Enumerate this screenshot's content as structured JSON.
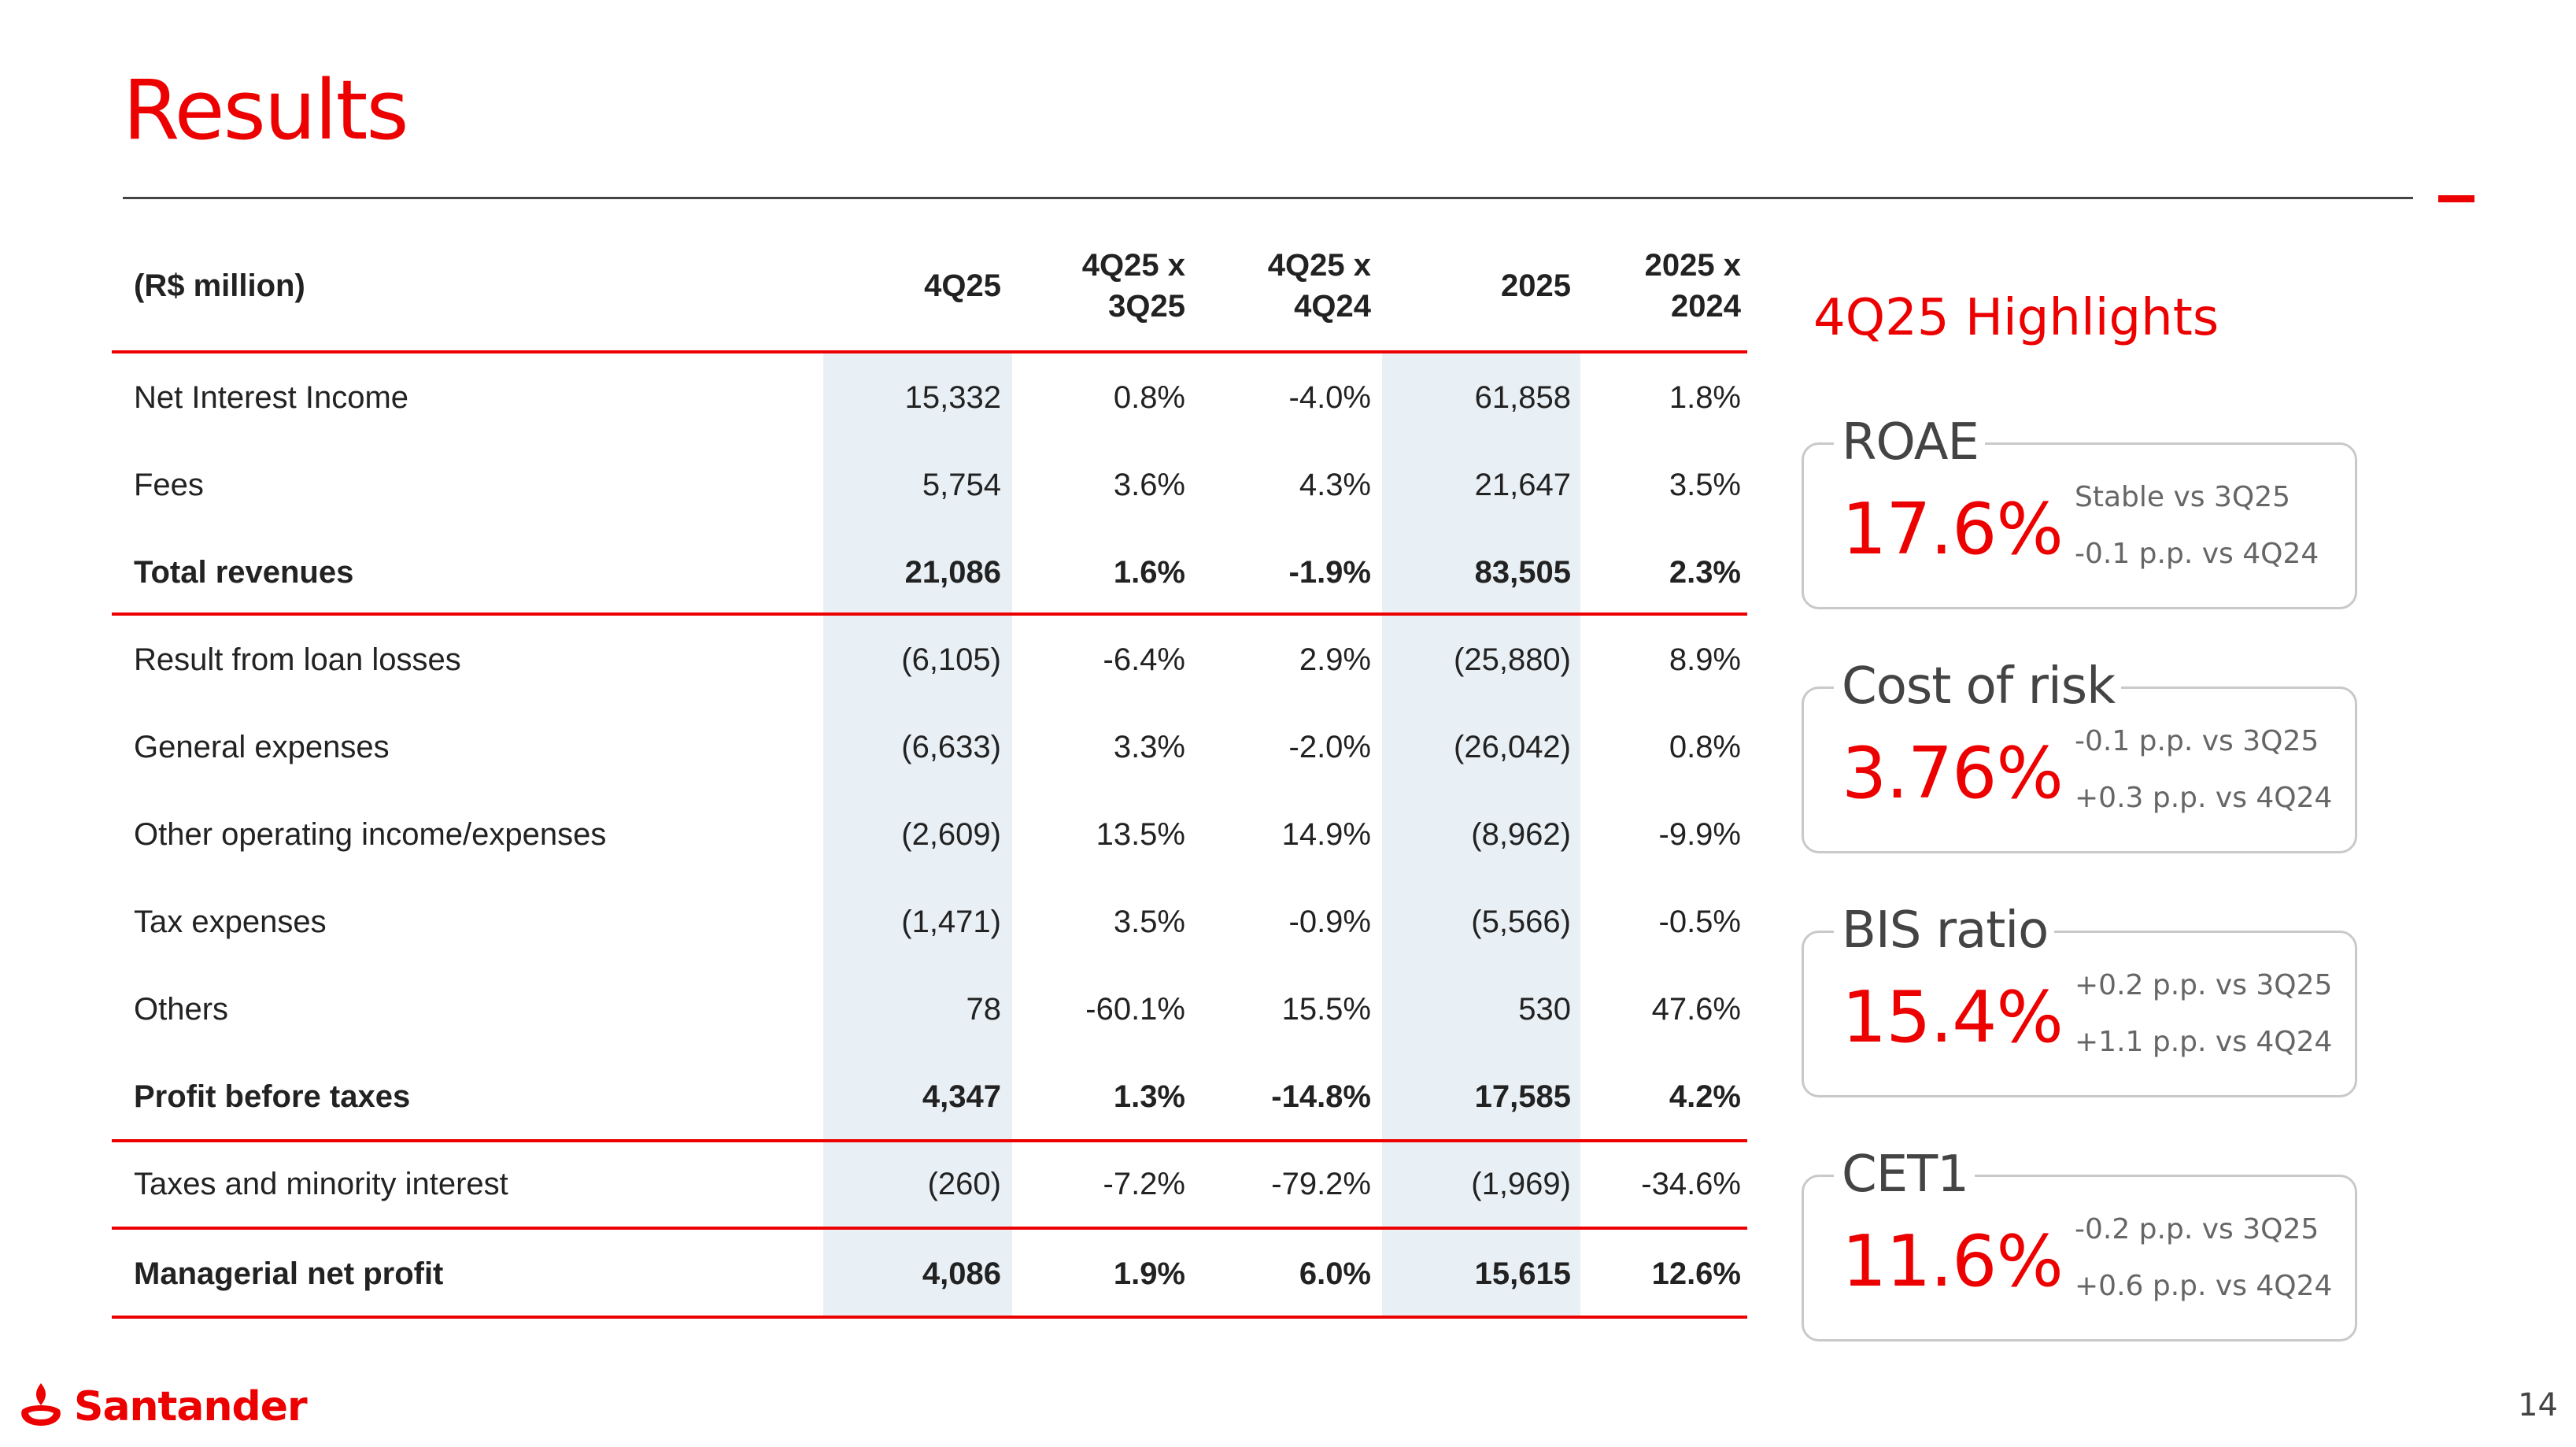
{
  "title": "Results",
  "table": {
    "headers": {
      "label": "(R$ million)",
      "c1": "4Q25",
      "c2_line1": "4Q25 x",
      "c2_line2": "3Q25",
      "c3_line1": "4Q25 x",
      "c3_line2": "4Q24",
      "c4": "2025",
      "c5_line1": "2025 x",
      "c5_line2": "2024"
    },
    "rows": [
      {
        "label": "Net Interest Income",
        "v": [
          "15,332",
          "0.8%",
          "-4.0%",
          "61,858",
          "1.8%"
        ]
      },
      {
        "label": "Fees",
        "v": [
          "5,754",
          "3.6%",
          "4.3%",
          "21,647",
          "3.5%"
        ]
      },
      {
        "label": "Total revenues",
        "v": [
          "21,086",
          "1.6%",
          "-1.9%",
          "83,505",
          "2.3%"
        ]
      },
      {
        "label": "Result from loan losses",
        "v": [
          "(6,105)",
          "-6.4%",
          "2.9%",
          "(25,880)",
          "8.9%"
        ]
      },
      {
        "label": "General expenses",
        "v": [
          "(6,633)",
          "3.3%",
          "-2.0%",
          "(26,042)",
          "0.8%"
        ]
      },
      {
        "label": "Other operating income/expenses",
        "v": [
          "(2,609)",
          "13.5%",
          "14.9%",
          "(8,962)",
          "-9.9%"
        ]
      },
      {
        "label": "Tax expenses",
        "v": [
          "(1,471)",
          "3.5%",
          "-0.9%",
          "(5,566)",
          "-0.5%"
        ]
      },
      {
        "label": "Others",
        "v": [
          "78",
          "-60.1%",
          "15.5%",
          "530",
          "47.6%"
        ]
      },
      {
        "label": "Profit before taxes",
        "v": [
          "4,347",
          "1.3%",
          "-14.8%",
          "17,585",
          "4.2%"
        ]
      },
      {
        "label": "Taxes and minority interest",
        "v": [
          "(260)",
          "-7.2%",
          "-79.2%",
          "(1,969)",
          "-34.6%"
        ]
      },
      {
        "label": "Managerial net profit",
        "v": [
          "4,086",
          "1.9%",
          "6.0%",
          "15,615",
          "12.6%"
        ]
      }
    ]
  },
  "highlights": {
    "title": "4Q25 Highlights",
    "cards": [
      {
        "label": "ROAE",
        "value": "17.6%",
        "note1": "Stable vs 3Q25",
        "note2": "-0.1 p.p. vs 4Q24"
      },
      {
        "label": "Cost of risk",
        "value": "3.76%",
        "note1": "-0.1 p.p. vs 3Q25",
        "note2": "+0.3 p.p. vs 4Q24"
      },
      {
        "label": "BIS ratio",
        "value": "15.4%",
        "note1": "+0.2 p.p. vs 3Q25",
        "note2": "+1.1 p.p. vs 4Q24"
      },
      {
        "label": "CET1",
        "value": "11.6%",
        "note1": "-0.2 p.p. vs 3Q25",
        "note2": "+0.6 p.p. vs 4Q24"
      }
    ]
  },
  "footer": {
    "brand": "Santander",
    "page_number": "14"
  },
  "colors": {
    "accent": "#ec0000",
    "band": "#e9f0f5"
  },
  "icons": {
    "logo": "santander-flame-icon"
  }
}
